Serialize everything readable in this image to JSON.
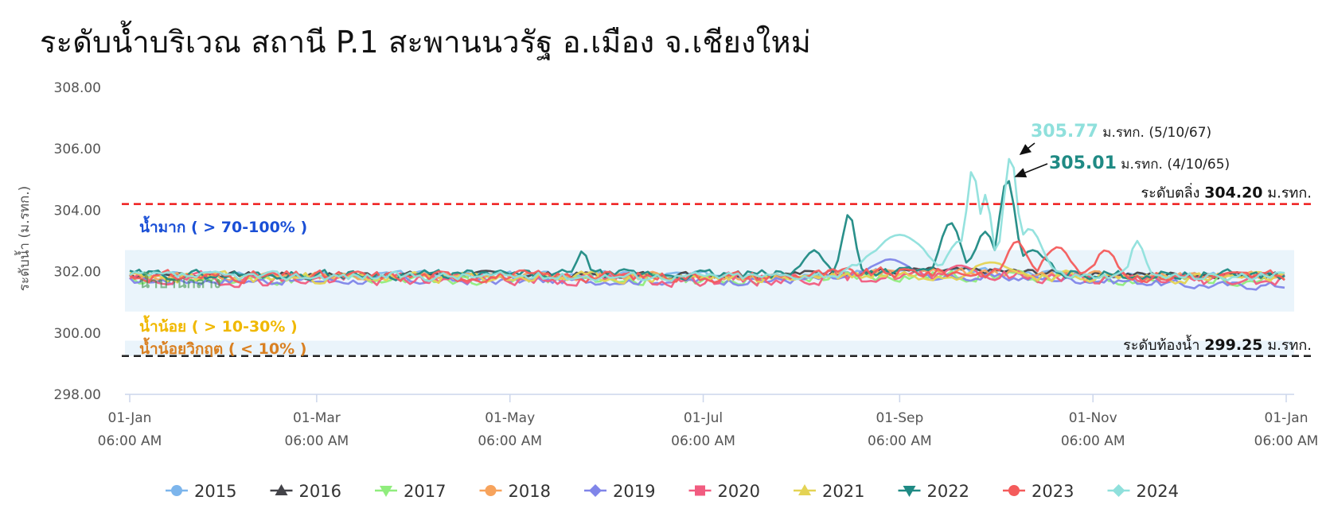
{
  "title": "ระดับน้ำบริเวณ สถานี P.1 สะพานนวรัฐ อ.เมือง จ.เชียงใหม่",
  "chart_data": {
    "type": "line",
    "ylabel": "ระดับน้ำ (ม.รทก.)",
    "ylim": [
      298,
      308
    ],
    "yticks": [
      "308.00",
      "306.00",
      "304.00",
      "302.00",
      "300.00",
      "298.00"
    ],
    "xlim": [
      0,
      366
    ],
    "xticks": [
      {
        "day": 0,
        "date": "01-Jan",
        "time": "06:00 AM"
      },
      {
        "day": 59,
        "date": "01-Mar",
        "time": "06:00 AM"
      },
      {
        "day": 120,
        "date": "01-May",
        "time": "06:00 AM"
      },
      {
        "day": 181,
        "date": "01-Jul",
        "time": "06:00 AM"
      },
      {
        "day": 243,
        "date": "01-Sep",
        "time": "06:00 AM"
      },
      {
        "day": 304,
        "date": "01-Nov",
        "time": "06:00 AM"
      },
      {
        "day": 365,
        "date": "01-Jan",
        "time": "06:00 AM"
      }
    ],
    "grid": false,
    "legend_position": "bottom",
    "reference_lines": [
      {
        "label": "ระดับตลิ่ง",
        "value": 304.2,
        "value_text": "304.20",
        "unit": "ม.รทก.",
        "color": "#ee1c1c"
      },
      {
        "label": "ระดับท้องน้ำ",
        "value": 299.25,
        "value_text": "299.25",
        "unit": "ม.รทก.",
        "color": "#222222"
      }
    ],
    "zones": [
      {
        "label": "น้ำมาก ( > 70-100% )",
        "from": 300.7,
        "to": 302.7,
        "color": "#1a4fd6",
        "fill": "#eaf4fb"
      },
      {
        "label": "น้ำปานกลาง",
        "color": "#2e8b3a"
      },
      {
        "label": "น้ำน้อย ( > 10-30% )",
        "color": "#f0b800"
      },
      {
        "label": "น้ำน้อยวิกฤต ( < 10% )",
        "from": 299.25,
        "to": 299.75,
        "color": "#d98022",
        "fill": "#eaf4fb"
      }
    ],
    "annotations": [
      {
        "value_text": "305.77",
        "unit": "ม.รทก.",
        "date": "(5/10/67)",
        "series": "2024",
        "x": 278,
        "y": 305.77,
        "color": "#8fe0dc"
      },
      {
        "value_text": "305.01",
        "unit": "ม.รทก.",
        "date": "(4/10/65)",
        "series": "2022",
        "x": 277,
        "y": 305.01,
        "color": "#1f8a84"
      }
    ],
    "series": [
      {
        "name": "2015",
        "color": "#7cb5ec",
        "marker": "circle",
        "base": 301.9,
        "amp": 0.15,
        "seed": 3,
        "peaks": []
      },
      {
        "name": "2016",
        "color": "#434348",
        "marker": "triangle",
        "base": 301.9,
        "amp": 0.15,
        "seed": 7,
        "peaks": []
      },
      {
        "name": "2017",
        "color": "#90ed7d",
        "marker": "triangle-down",
        "base": 301.75,
        "amp": 0.25,
        "seed": 11,
        "peaks": []
      },
      {
        "name": "2018",
        "color": "#f7a35c",
        "marker": "circle",
        "base": 301.85,
        "amp": 0.18,
        "seed": 13,
        "peaks": []
      },
      {
        "name": "2019",
        "color": "#8085e9",
        "marker": "diamond",
        "base": 301.7,
        "amp": 0.18,
        "seed": 17,
        "peaks": [
          [
            240,
            302.4,
            6
          ]
        ],
        "endBase": 301.55
      },
      {
        "name": "2020",
        "color": "#f15c80",
        "marker": "square",
        "base": 301.75,
        "amp": 0.3,
        "seed": 19,
        "peaks": [
          [
            262,
            302.2,
            5
          ]
        ]
      },
      {
        "name": "2021",
        "color": "#e4d354",
        "marker": "triangle",
        "base": 301.8,
        "amp": 0.25,
        "seed": 23,
        "peaks": [
          [
            272,
            302.3,
            6
          ]
        ]
      },
      {
        "name": "2022",
        "color": "#1f8a84",
        "marker": "triangle-down",
        "base": 301.9,
        "amp": 0.22,
        "seed": 29,
        "peaks": [
          [
            143,
            302.7,
            1.5
          ],
          [
            227,
            303.9,
            2
          ],
          [
            216,
            302.7,
            3
          ],
          [
            259,
            303.6,
            3
          ],
          [
            270,
            303.3,
            3
          ],
          [
            277,
            305.01,
            2.5
          ],
          [
            285,
            302.7,
            4
          ]
        ]
      },
      {
        "name": "2023",
        "color": "#f45b5b",
        "marker": "circle",
        "base": 301.85,
        "amp": 0.25,
        "seed": 31,
        "peaks": [
          [
            280,
            303.0,
            3
          ],
          [
            293,
            302.8,
            4
          ],
          [
            308,
            302.7,
            3
          ]
        ]
      },
      {
        "name": "2024",
        "color": "#8fe0dc",
        "marker": "diamond",
        "base": 301.85,
        "amp": 0.2,
        "seed": 37,
        "peaks": [
          [
            243,
            303.2,
            8
          ],
          [
            262,
            303.0,
            4
          ],
          [
            266,
            305.35,
            2
          ],
          [
            270,
            304.5,
            2
          ],
          [
            278,
            305.77,
            2.2
          ],
          [
            284,
            303.4,
            4
          ],
          [
            318,
            303.0,
            2
          ]
        ]
      }
    ]
  }
}
